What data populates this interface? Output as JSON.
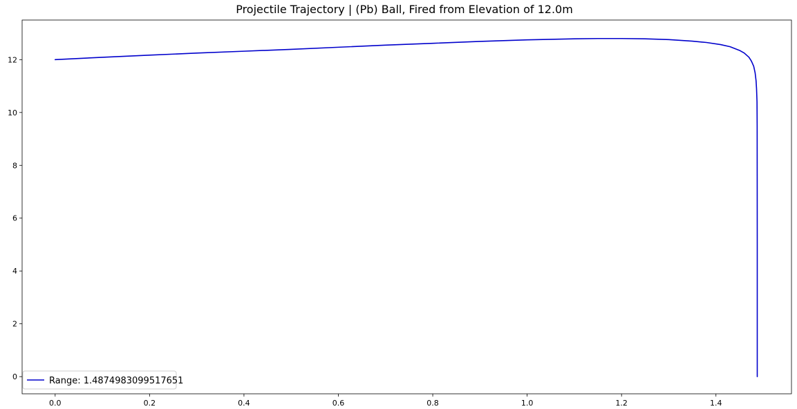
{
  "chart_data": {
    "type": "line",
    "title": "Projectile Trajectory | (Pb) Ball, Fired from Elevation of 12.0m",
    "xlabel": "",
    "ylabel": "",
    "xlim": [
      -0.07,
      1.56
    ],
    "ylim": [
      -0.65,
      13.5
    ],
    "x_ticks": [
      0.0,
      0.2,
      0.4,
      0.6,
      0.8,
      1.0,
      1.2,
      1.4
    ],
    "x_tick_labels": [
      "0.0",
      "0.2",
      "0.4",
      "0.6",
      "0.8",
      "1.0",
      "1.2",
      "1.4"
    ],
    "y_ticks": [
      0,
      2,
      4,
      6,
      8,
      10,
      12
    ],
    "y_tick_labels": [
      "0",
      "2",
      "4",
      "6",
      "8",
      "10",
      "12"
    ],
    "grid": false,
    "legend_position": "lower-left",
    "series": [
      {
        "name": "Range: 1.4874983099517651",
        "color": "#0000cc",
        "x": [
          0.0,
          0.1,
          0.2,
          0.3,
          0.4,
          0.5,
          0.6,
          0.7,
          0.8,
          0.9,
          1.0,
          1.05,
          1.1,
          1.15,
          1.2,
          1.25,
          1.3,
          1.35,
          1.38,
          1.41,
          1.43,
          1.45,
          1.46,
          1.47,
          1.475,
          1.48,
          1.483,
          1.485,
          1.486,
          1.487,
          1.4873,
          1.4875,
          1.4875
        ],
        "y": [
          12.0,
          12.09,
          12.17,
          12.25,
          12.32,
          12.39,
          12.47,
          12.55,
          12.62,
          12.69,
          12.75,
          12.77,
          12.79,
          12.8,
          12.8,
          12.79,
          12.76,
          12.7,
          12.65,
          12.57,
          12.49,
          12.35,
          12.25,
          12.09,
          11.95,
          11.75,
          11.5,
          11.2,
          10.9,
          10.4,
          9.5,
          5.0,
          0.0
        ]
      }
    ]
  }
}
